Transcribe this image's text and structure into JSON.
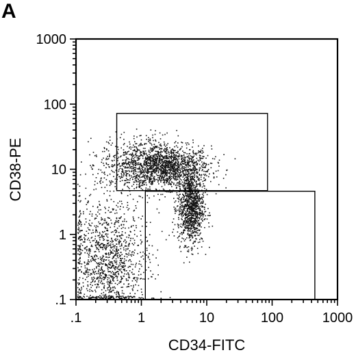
{
  "panel_label": "A",
  "chart_data": {
    "type": "scatter",
    "title": "",
    "xlabel": "CD34-FITC",
    "ylabel": "CD38-PE",
    "xscale": "log",
    "yscale": "log",
    "xlim": [
      0.1,
      1000
    ],
    "ylim": [
      0.1,
      1000
    ],
    "x_ticks": [
      0.1,
      1,
      10,
      100,
      1000
    ],
    "y_ticks": [
      0.1,
      1,
      10,
      100,
      1000
    ],
    "x_tick_labels": [
      ".1",
      "1",
      "10",
      "100",
      "1000"
    ],
    "y_tick_labels": [
      ".1",
      "1",
      "10",
      "100",
      "1000"
    ],
    "grid": false,
    "gates": [
      {
        "x": [
          0.42,
          85
        ],
        "y": [
          4.7,
          72
        ]
      },
      {
        "x": [
          1.15,
          450
        ],
        "y": [
          0.1,
          4.6
        ]
      }
    ],
    "density_clusters": [
      {
        "center": [
          2.6,
          11
        ],
        "spread": [
          0.32,
          0.16
        ],
        "weight": 0.3
      },
      {
        "center": [
          5.6,
          2.6
        ],
        "spread": [
          0.1,
          0.28
        ],
        "weight": 0.25
      },
      {
        "center": [
          0.3,
          0.45
        ],
        "spread": [
          0.3,
          0.45
        ],
        "weight": 0.3
      },
      {
        "center": [
          0.9,
          12
        ],
        "spread": [
          0.3,
          0.22
        ],
        "weight": 0.15
      }
    ],
    "marker_color": "#111111"
  }
}
